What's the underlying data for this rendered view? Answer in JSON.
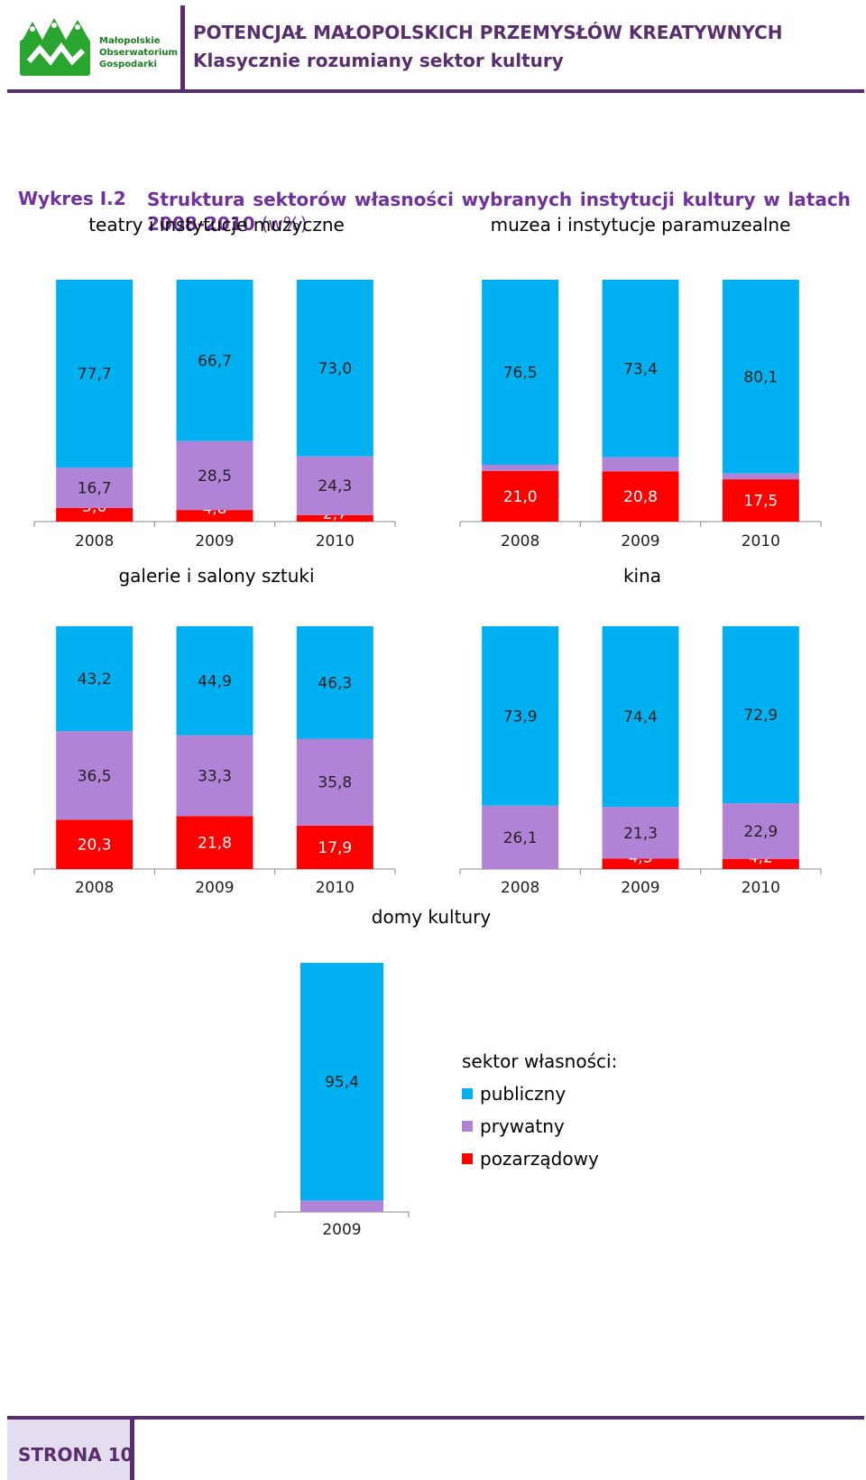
{
  "header": {
    "logo_text": [
      "Małopolskie",
      "Obserwatorium",
      "Gospodarki"
    ],
    "title": "POTENCJAŁ MAŁOPOLSKICH PRZEMYSŁÓW KREATYWNYCH",
    "subtitle": "Klasycznie rozumiany sektor kultury"
  },
  "caption": {
    "label": "Wykres I.2",
    "title_words": [
      "Struktura",
      "sektorów",
      "własności",
      "wybranych",
      "instytucji",
      "kultury",
      "w",
      "latach"
    ],
    "title_line2": "2008-2010",
    "unit": "(w%)"
  },
  "colors": {
    "publiczny": "#00b0f0",
    "prywatny": "#b083d6",
    "pozarzadowy": "#ff0000",
    "accent": "#7030a0",
    "brand": "#5a2d6e"
  },
  "chart_data": [
    {
      "type": "bar",
      "stacked": true,
      "title": "teatry i instytucje muzyczne",
      "categories": [
        "2008",
        "2009",
        "2010"
      ],
      "series": [
        {
          "name": "pozarządowy",
          "key": "pozarzadowy",
          "values": [
            5.6,
            4.8,
            2.7
          ],
          "labels": [
            "5,6",
            "4,8",
            "2,7"
          ]
        },
        {
          "name": "prywatny",
          "key": "prywatny",
          "values": [
            16.7,
            28.5,
            24.3
          ],
          "labels": [
            "16,7",
            "28,5",
            "24,3"
          ]
        },
        {
          "name": "publiczny",
          "key": "publiczny",
          "values": [
            77.7,
            66.7,
            73.0
          ],
          "labels": [
            "77,7",
            "66,7",
            "73,0"
          ]
        }
      ],
      "ylim": [
        0,
        100
      ]
    },
    {
      "type": "bar",
      "stacked": true,
      "title": "muzea i instytucje paramuzealne",
      "categories": [
        "2008",
        "2009",
        "2010"
      ],
      "series": [
        {
          "name": "pozarządowy",
          "key": "pozarzadowy",
          "values": [
            21.0,
            20.8,
            17.5
          ],
          "labels": [
            "21,0",
            "20,8",
            "17,5"
          ]
        },
        {
          "name": "prywatny",
          "key": "prywatny",
          "values": [
            2.5,
            5.8,
            2.4
          ],
          "labels": [
            "2,5",
            "5,8",
            "2,4"
          ]
        },
        {
          "name": "publiczny",
          "key": "publiczny",
          "values": [
            76.5,
            73.4,
            80.1
          ],
          "labels": [
            "76,5",
            "73,4",
            "80,1"
          ]
        }
      ],
      "ylim": [
        0,
        100
      ]
    },
    {
      "type": "bar",
      "stacked": true,
      "title": "galerie i salony sztuki",
      "categories": [
        "2008",
        "2009",
        "2010"
      ],
      "series": [
        {
          "name": "pozarządowy",
          "key": "pozarzadowy",
          "values": [
            20.3,
            21.8,
            17.9
          ],
          "labels": [
            "20,3",
            "21,8",
            "17,9"
          ]
        },
        {
          "name": "prywatny",
          "key": "prywatny",
          "values": [
            36.5,
            33.3,
            35.8
          ],
          "labels": [
            "36,5",
            "33,3",
            "35,8"
          ]
        },
        {
          "name": "publiczny",
          "key": "publiczny",
          "values": [
            43.2,
            44.9,
            46.3
          ],
          "labels": [
            "43,2",
            "44,9",
            "46,3"
          ]
        }
      ],
      "ylim": [
        0,
        100
      ]
    },
    {
      "type": "bar",
      "stacked": true,
      "title": "kina",
      "categories": [
        "2008",
        "2009",
        "2010"
      ],
      "series": [
        {
          "name": "pozarządowy",
          "key": "pozarzadowy",
          "values": [
            0,
            4.3,
            4.2
          ],
          "labels": [
            "",
            "4,3",
            "4,2"
          ]
        },
        {
          "name": "prywatny",
          "key": "prywatny",
          "values": [
            26.1,
            21.3,
            22.9
          ],
          "labels": [
            "26,1",
            "21,3",
            "22,9"
          ]
        },
        {
          "name": "publiczny",
          "key": "publiczny",
          "values": [
            73.9,
            74.4,
            72.9
          ],
          "labels": [
            "73,9",
            "74,4",
            "72,9"
          ]
        }
      ],
      "ylim": [
        0,
        100
      ]
    },
    {
      "type": "bar",
      "stacked": true,
      "title": "domy kultury",
      "categories": [
        "2009"
      ],
      "series": [
        {
          "name": "pozarządowy",
          "key": "pozarzadowy",
          "values": [
            0
          ],
          "labels": [
            ""
          ]
        },
        {
          "name": "prywatny",
          "key": "prywatny",
          "values": [
            4.6
          ],
          "labels": [
            "4,6"
          ]
        },
        {
          "name": "publiczny",
          "key": "publiczny",
          "values": [
            95.4
          ],
          "labels": [
            "95,4"
          ]
        }
      ],
      "ylim": [
        0,
        100
      ]
    }
  ],
  "legend": {
    "title": "sektor własności:",
    "items": [
      {
        "label": "publiczny",
        "color": "#00b0f0"
      },
      {
        "label": "prywatny",
        "color": "#b083d6"
      },
      {
        "label": "pozarządowy",
        "color": "#ff0000"
      }
    ]
  },
  "footer": {
    "page_label": "STRONA 10"
  }
}
